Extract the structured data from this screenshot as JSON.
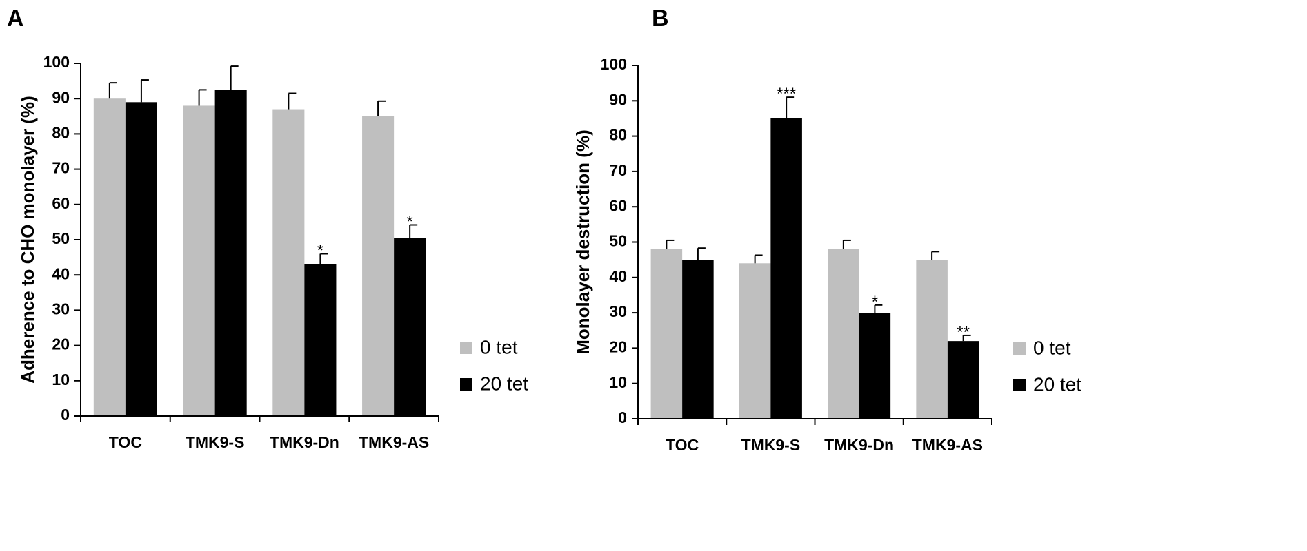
{
  "chart_data": [
    {
      "panel": "A",
      "type": "bar",
      "categories": [
        "TOC",
        "TMK9-S",
        "TMK9-Dn",
        "TMK9-AS"
      ],
      "ylabel": "Adherence to CHO monolayer (%)",
      "xlabel": "",
      "ylim": [
        0,
        100
      ],
      "yticks": [
        0,
        10,
        20,
        30,
        40,
        50,
        60,
        70,
        80,
        90,
        100
      ],
      "grid": false,
      "legend": "right",
      "series": [
        {
          "name": "0 tet",
          "color": "#bfbfbf",
          "values": [
            90,
            88,
            87,
            85
          ],
          "errors": [
            4.5,
            4.5,
            4.5,
            4.3
          ],
          "significance": [
            "",
            "",
            "",
            ""
          ]
        },
        {
          "name": "20 tet",
          "color": "#000000",
          "values": [
            89,
            92.5,
            43,
            50.5
          ],
          "errors": [
            6.3,
            6.7,
            3,
            3.7
          ],
          "significance": [
            "",
            "",
            "*",
            "*"
          ]
        }
      ]
    },
    {
      "panel": "B",
      "type": "bar",
      "categories": [
        "TOC",
        "TMK9-S",
        "TMK9-Dn",
        "TMK9-AS"
      ],
      "ylabel": "Monolayer destruction (%)",
      "xlabel": "",
      "ylim": [
        0,
        100
      ],
      "yticks": [
        0,
        10,
        20,
        30,
        40,
        50,
        60,
        70,
        80,
        90,
        100
      ],
      "grid": false,
      "legend": "right",
      "series": [
        {
          "name": "0 tet",
          "color": "#bfbfbf",
          "values": [
            48,
            44,
            48,
            45
          ],
          "errors": [
            2.5,
            2.3,
            2.5,
            2.3
          ],
          "significance": [
            "",
            "",
            "",
            ""
          ]
        },
        {
          "name": "20 tet",
          "color": "#000000",
          "values": [
            45,
            85,
            30,
            22
          ],
          "errors": [
            3.3,
            6,
            2.2,
            1.6
          ],
          "significance": [
            "",
            "***",
            "*",
            "**"
          ]
        }
      ]
    }
  ]
}
